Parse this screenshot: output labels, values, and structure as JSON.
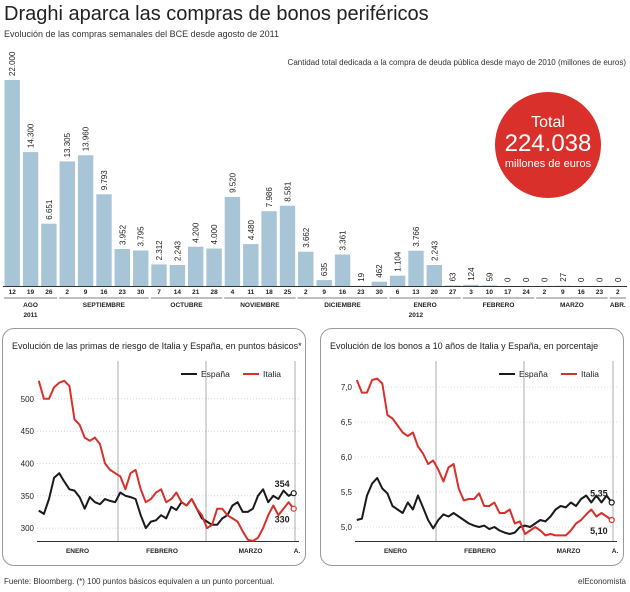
{
  "header": {
    "title": "Draghi aparca las compras de bonos periféricos",
    "subtitle": "Evolución de las compras semanales del BCE desde agosto de 2011",
    "bar_note": "Cantidad total dedicada a la compra de deuda pública desde mayo de 2010 (millones de euros)"
  },
  "total_badge": {
    "label": "Total",
    "value": "224.038",
    "unit": "millones de euros",
    "color": "#d9302b"
  },
  "footer": {
    "source": "Fuente: Bloomberg. (*) 100 puntos básicos equivalen a un punto porcentual.",
    "brand": "elEconomista"
  },
  "colors": {
    "bar": "#a8c5d8",
    "espana": "#1a1a1a",
    "italia": "#d9302b",
    "axis": "#444444",
    "grid": "#999999"
  },
  "chart_data": [
    {
      "type": "bar",
      "title": "Draghi aparca las compras de bonos periféricos",
      "categories": [
        "12",
        "19",
        "26",
        "2",
        "9",
        "16",
        "23",
        "30",
        "7",
        "14",
        "21",
        "28",
        "4",
        "11",
        "18",
        "25",
        "2",
        "9",
        "16",
        "23",
        "30",
        "6",
        "13",
        "20",
        "27",
        "3",
        "10",
        "17",
        "24",
        "2",
        "9",
        "16",
        "23",
        "2"
      ],
      "value_labels": [
        "22.000",
        "14.300",
        "6.651",
        "13.305",
        "13.960",
        "9.793",
        "3.952",
        "3.795",
        "2.312",
        "2.243",
        "4.200",
        "4.000",
        "9.520",
        "4.480",
        "7.986",
        "8.581",
        "3.662",
        "635",
        "3.361",
        "19",
        "462",
        "1.104",
        "3.766",
        "2.243",
        "63",
        "124",
        "59",
        "0",
        "0",
        "0",
        "27",
        "0",
        "0",
        "0"
      ],
      "values": [
        22000,
        14300,
        6651,
        13305,
        13960,
        9793,
        3952,
        3795,
        2312,
        2243,
        4200,
        4000,
        9520,
        4480,
        7986,
        8581,
        3662,
        635,
        3361,
        19,
        462,
        1104,
        3766,
        2243,
        63,
        124,
        59,
        0,
        0,
        0,
        27,
        0,
        0,
        0
      ],
      "months": [
        {
          "label": "AGO",
          "start": 0,
          "end": 2
        },
        {
          "label": "SEPTIEMBRE",
          "start": 3,
          "end": 7
        },
        {
          "label": "OCTUBRE",
          "start": 8,
          "end": 11
        },
        {
          "label": "NOVIEMBRE",
          "start": 12,
          "end": 15
        },
        {
          "label": "DICIEMBRE",
          "start": 16,
          "end": 20
        },
        {
          "label": "ENERO",
          "start": 21,
          "end": 24
        },
        {
          "label": "FEBRERO",
          "start": 25,
          "end": 28
        },
        {
          "label": "MARZO",
          "start": 29,
          "end": 32
        },
        {
          "label": "ABR.",
          "start": 33,
          "end": 33
        }
      ],
      "years": [
        {
          "label": "2011",
          "index": 1
        },
        {
          "label": "2012",
          "index": 22
        }
      ],
      "ylim": [
        0,
        22000
      ],
      "ylabel": "",
      "xlabel": ""
    },
    {
      "type": "line",
      "title": "Evolución de las primas de riesgo de Italia y España, en puntos básicos*",
      "yticks": [
        "500",
        "450",
        "400",
        "350",
        "300"
      ],
      "ylim": [
        280,
        540
      ],
      "months": [
        "ENERO",
        "FEBRERO",
        "MARZO",
        "A."
      ],
      "series": [
        {
          "name": "España",
          "values": [
            327,
            322,
            345,
            378,
            385,
            372,
            360,
            358,
            348,
            330,
            348,
            340,
            337,
            345,
            342,
            340,
            355,
            350,
            348,
            345,
            320,
            300,
            310,
            312,
            320,
            315,
            333,
            328,
            340,
            335,
            345,
            330,
            315,
            310,
            305,
            305,
            315,
            320,
            335,
            340,
            325,
            325,
            330,
            350,
            360,
            340,
            350,
            345,
            358,
            350,
            354
          ]
        },
        {
          "name": "Italia",
          "values": [
            528,
            500,
            500,
            518,
            525,
            528,
            520,
            468,
            460,
            440,
            435,
            440,
            430,
            400,
            390,
            385,
            380,
            360,
            385,
            390,
            360,
            340,
            345,
            355,
            360,
            340,
            345,
            355,
            340,
            335,
            345,
            330,
            320,
            300,
            305,
            330,
            330,
            320,
            315,
            310,
            295,
            282,
            280,
            285,
            300,
            320,
            335,
            320,
            330,
            340,
            330
          ]
        }
      ],
      "end_labels": {
        "espana": "354",
        "italia": "330"
      }
    },
    {
      "type": "line",
      "title": "Evolución de los bonos a 10 años de Italia y España, en porcentaje",
      "yticks": [
        "7,0",
        "6,5",
        "6,0",
        "5,5",
        "5,0"
      ],
      "ylim": [
        4.8,
        7.2
      ],
      "months": [
        "ENERO",
        "FEBRERO",
        "MARZO",
        "A."
      ],
      "series": [
        {
          "name": "España",
          "values": [
            5.1,
            5.12,
            5.45,
            5.62,
            5.7,
            5.55,
            5.48,
            5.3,
            5.25,
            5.2,
            5.35,
            5.25,
            5.45,
            5.28,
            5.1,
            4.98,
            5.1,
            5.18,
            5.15,
            5.2,
            5.15,
            5.1,
            5.05,
            5.02,
            5.0,
            5.02,
            4.97,
            5.0,
            4.95,
            4.92,
            4.9,
            4.92,
            5.0,
            5.02,
            5.0,
            5.05,
            5.1,
            5.08,
            5.15,
            5.25,
            5.3,
            5.28,
            5.35,
            5.3,
            5.4,
            5.45,
            5.35,
            5.45,
            5.35,
            5.45,
            5.35
          ]
        },
        {
          "name": "Italia",
          "values": [
            7.1,
            6.92,
            6.92,
            7.1,
            7.12,
            7.05,
            6.6,
            6.55,
            6.45,
            6.35,
            6.3,
            6.35,
            6.15,
            6.05,
            5.9,
            5.95,
            5.82,
            5.65,
            5.85,
            5.9,
            5.55,
            5.38,
            5.4,
            5.4,
            5.48,
            5.3,
            5.3,
            5.35,
            5.2,
            5.2,
            5.25,
            5.05,
            5.08,
            4.9,
            4.95,
            5.0,
            4.95,
            4.88,
            4.9,
            4.88,
            4.88,
            4.88,
            4.95,
            5.05,
            5.1,
            5.18,
            5.25,
            5.15,
            5.2,
            5.15,
            5.1
          ]
        }
      ],
      "end_labels": {
        "espana": "5,35",
        "italia": "5,10"
      }
    }
  ]
}
